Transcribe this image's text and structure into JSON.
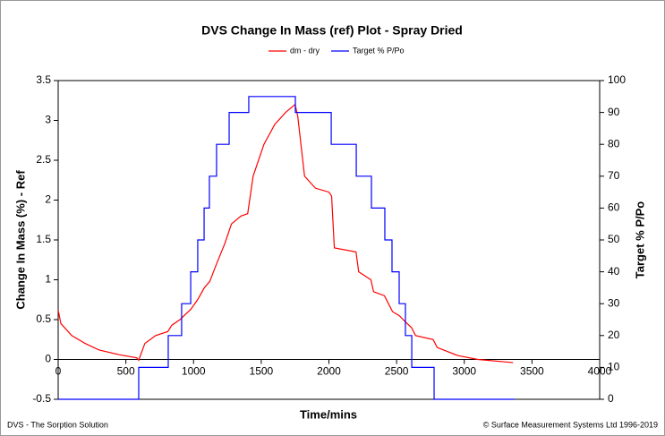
{
  "chart_data": {
    "type": "line",
    "title": "DVS Change In Mass (ref) Plot - Spray Dried",
    "x_label": "Time/mins",
    "y_label": "Change In Mass (%) - Ref",
    "y2_label": "Target % P/Po",
    "footer_left": "DVS - The Sorption Solution",
    "footer_right": "© Surface Measurement Systems Ltd 1996-2019",
    "xlim": [
      0,
      4000
    ],
    "xticks": [
      0,
      500,
      1000,
      1500,
      2000,
      2500,
      3000,
      3500,
      4000
    ],
    "ylim": [
      -0.5,
      3.5
    ],
    "yticks": [
      -0.5,
      0,
      0.5,
      1,
      1.5,
      2,
      2.5,
      3,
      3.5
    ],
    "y2lim": [
      0,
      100
    ],
    "y2ticks": [
      0,
      10,
      20,
      30,
      40,
      50,
      60,
      70,
      80,
      90,
      100
    ],
    "series": [
      {
        "name": "dm - dry",
        "color": "#ff0000",
        "x": [
          0,
          20,
          100,
          200,
          300,
          450,
          580,
          595,
          640,
          720,
          810,
          840,
          900,
          930,
          980,
          1030,
          1080,
          1120,
          1170,
          1230,
          1280,
          1350,
          1400,
          1440,
          1520,
          1600,
          1680,
          1750,
          1770,
          1820,
          1900,
          2000,
          2020,
          2040,
          2200,
          2220,
          2310,
          2330,
          2410,
          2440,
          2470,
          2520,
          2560,
          2610,
          2640,
          2770,
          2800,
          2950,
          3100,
          3300,
          3360
        ],
        "values": [
          0.62,
          0.45,
          0.3,
          0.2,
          0.12,
          0.06,
          0.02,
          -0.01,
          0.2,
          0.3,
          0.35,
          0.43,
          0.5,
          0.55,
          0.63,
          0.75,
          0.9,
          0.98,
          1.2,
          1.45,
          1.7,
          1.8,
          1.83,
          2.3,
          2.7,
          2.95,
          3.1,
          3.2,
          3.05,
          2.3,
          2.15,
          2.1,
          2.05,
          1.4,
          1.35,
          1.1,
          1.0,
          0.85,
          0.8,
          0.7,
          0.6,
          0.55,
          0.48,
          0.4,
          0.3,
          0.25,
          0.15,
          0.05,
          0.0,
          -0.03,
          -0.04
        ]
      },
      {
        "name": "Target % P/Po",
        "color": "#0000ff",
        "axis": "y2",
        "x": [
          0,
          595,
          595,
          813,
          813,
          912,
          912,
          979,
          979,
          1031,
          1031,
          1078,
          1078,
          1117,
          1117,
          1170,
          1170,
          1263,
          1263,
          1408,
          1408,
          1752,
          1752,
          2017,
          2017,
          2202,
          2202,
          2314,
          2314,
          2413,
          2413,
          2466,
          2466,
          2519,
          2519,
          2565,
          2565,
          2612,
          2612,
          2777,
          2777,
          3372
        ],
        "values": [
          0,
          0,
          10,
          10,
          20,
          20,
          30,
          30,
          40,
          40,
          50,
          50,
          60,
          60,
          70,
          70,
          80,
          80,
          90,
          90,
          95,
          95,
          90,
          90,
          80,
          80,
          70,
          70,
          60,
          60,
          50,
          50,
          40,
          40,
          30,
          30,
          20,
          20,
          10,
          10,
          0,
          0
        ]
      }
    ]
  }
}
